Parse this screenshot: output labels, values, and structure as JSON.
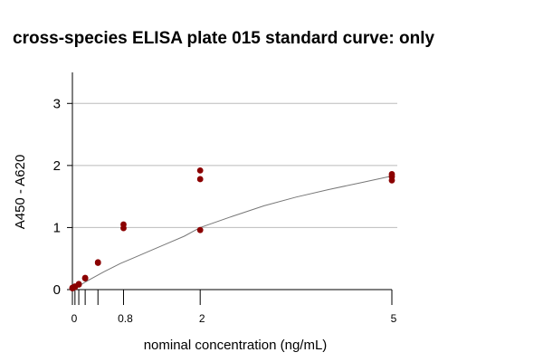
{
  "chart_data": {
    "type": "scatter",
    "title": "cross-species ELISA plate 015 standard curve: only",
    "xlabel": "nominal concentration (ng/mL)",
    "ylabel": "A450 - A620",
    "xlim": [
      0,
      5
    ],
    "ylim": [
      0,
      3.5
    ],
    "x_ticks": [
      0,
      0.04,
      0.1,
      0.2,
      0.4,
      0.8,
      2,
      5
    ],
    "x_tick_labels": [
      "0",
      "",
      "",
      "",
      "",
      "0.8",
      "2",
      "5"
    ],
    "y_ticks": [
      0,
      1,
      2,
      3
    ],
    "y_tick_labels": [
      "0",
      "1",
      "2",
      "3"
    ],
    "grid": "horizontal",
    "colors": {
      "points": "#8b0000",
      "curve": "#777777",
      "grid": "#bbbbbb",
      "axis": "#000000"
    },
    "series": [
      {
        "x": [
          0,
          0,
          0.04,
          0.04,
          0.1,
          0.1,
          0.2,
          0.2,
          0.4,
          0.4,
          0.8,
          0.8,
          2,
          2,
          2,
          5,
          5,
          5
        ],
        "y": [
          0.03,
          0.02,
          0.05,
          0.04,
          0.08,
          0.09,
          0.19,
          0.18,
          0.44,
          0.43,
          1.05,
          0.99,
          0.96,
          1.92,
          1.78,
          1.82,
          1.76,
          1.86
        ]
      }
    ],
    "fit_curve": {
      "model": "4PL",
      "x": [
        0,
        0.25,
        0.5,
        0.75,
        1,
        1.25,
        1.5,
        1.75,
        2,
        2.5,
        3,
        3.5,
        4,
        4.5,
        5
      ],
      "y": [
        0,
        0.15,
        0.29,
        0.42,
        0.53,
        0.64,
        0.75,
        0.86,
        1.0,
        1.18,
        1.35,
        1.49,
        1.61,
        1.72,
        1.83
      ]
    }
  }
}
